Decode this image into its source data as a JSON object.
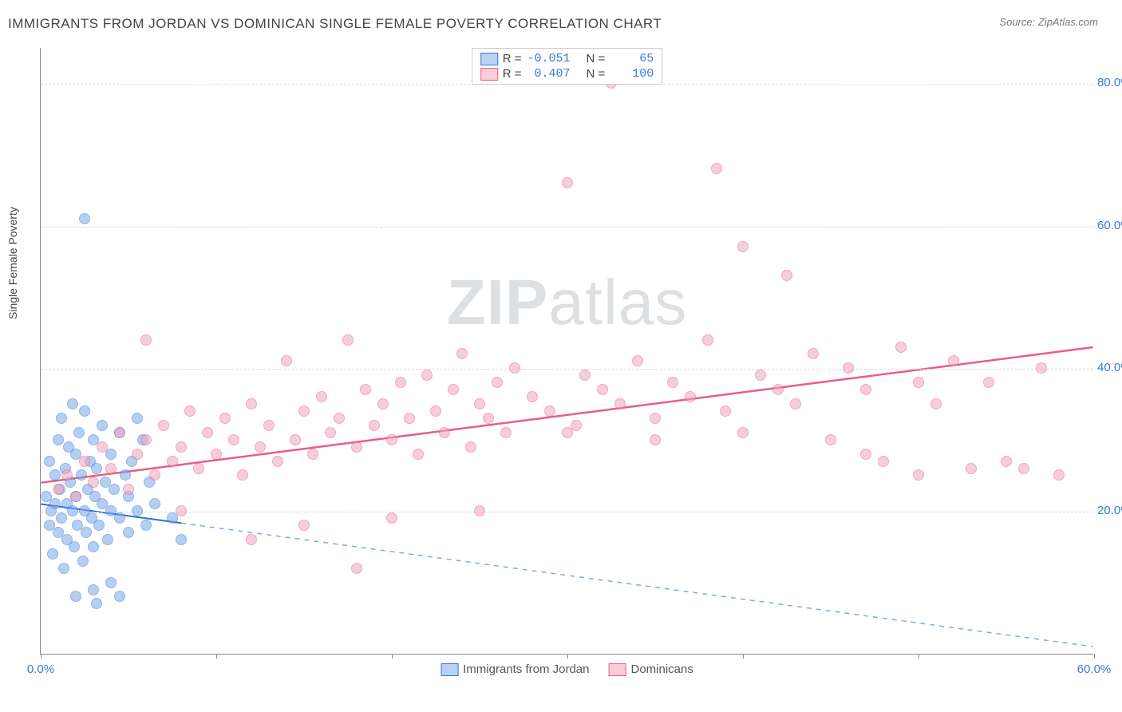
{
  "title": "IMMIGRANTS FROM JORDAN VS DOMINICAN SINGLE FEMALE POVERTY CORRELATION CHART",
  "source_label": "Source:",
  "source_name": "ZipAtlas.com",
  "ylabel": "Single Female Poverty",
  "watermark_bold": "ZIP",
  "watermark_rest": "atlas",
  "chart": {
    "type": "scatter",
    "xlim": [
      0,
      60
    ],
    "ylim": [
      0,
      85
    ],
    "background_color": "#ffffff",
    "grid_color": "#d8d8d8",
    "grid_style": "dashed",
    "axis_color": "#888888",
    "ytick_values": [
      20,
      40,
      60,
      80
    ],
    "ytick_labels": [
      "20.0%",
      "40.0%",
      "60.0%",
      "80.0%"
    ],
    "xtick_values": [
      0,
      10,
      20,
      30,
      40,
      50,
      60
    ],
    "xtick_labels_shown": {
      "0": "0.0%",
      "60": "60.0%"
    },
    "marker_radius": 7,
    "marker_opacity": 0.55,
    "label_fontsize": 14,
    "tick_fontsize": 15,
    "tick_color": "#3a78d8"
  },
  "legend_top": {
    "rows": [
      {
        "swatch_fill": "#b9d1f3",
        "swatch_border": "#3a78d8",
        "r_label": "R =",
        "r_value": "-0.051",
        "n_label": "N =",
        "n_value": "65"
      },
      {
        "swatch_fill": "#f7cdd7",
        "swatch_border": "#e85d8a",
        "r_label": "R =",
        "r_value": "0.407",
        "n_label": "N =",
        "n_value": "100"
      }
    ]
  },
  "legend_bottom": {
    "items": [
      {
        "swatch_fill": "#b9d1f3",
        "swatch_border": "#3a78d8",
        "label": "Immigrants from Jordan"
      },
      {
        "swatch_fill": "#f7cdd7",
        "swatch_border": "#e85d8a",
        "label": "Dominicans"
      }
    ]
  },
  "series": [
    {
      "name": "jordan",
      "color_fill": "#7aa8e8",
      "color_border": "#3a78d8",
      "trend": {
        "x1": 0,
        "y1": 21,
        "x2": 60,
        "y2": 1,
        "solid_until_x": 8,
        "color": "#2e6fd6",
        "width": 2
      },
      "points": [
        [
          0.3,
          22
        ],
        [
          0.5,
          18
        ],
        [
          0.5,
          27
        ],
        [
          0.6,
          20
        ],
        [
          0.7,
          14
        ],
        [
          0.8,
          25
        ],
        [
          0.8,
          21
        ],
        [
          1.0,
          30
        ],
        [
          1.0,
          17
        ],
        [
          1.1,
          23
        ],
        [
          1.2,
          33
        ],
        [
          1.2,
          19
        ],
        [
          1.3,
          12
        ],
        [
          1.4,
          26
        ],
        [
          1.5,
          21
        ],
        [
          1.5,
          16
        ],
        [
          1.6,
          29
        ],
        [
          1.7,
          24
        ],
        [
          1.8,
          35
        ],
        [
          1.8,
          20
        ],
        [
          1.9,
          15
        ],
        [
          2.0,
          28
        ],
        [
          2.0,
          22
        ],
        [
          2.1,
          18
        ],
        [
          2.2,
          31
        ],
        [
          2.3,
          25
        ],
        [
          2.4,
          13
        ],
        [
          2.5,
          20
        ],
        [
          2.5,
          34
        ],
        [
          2.6,
          17
        ],
        [
          2.7,
          23
        ],
        [
          2.8,
          27
        ],
        [
          2.9,
          19
        ],
        [
          3.0,
          30
        ],
        [
          3.0,
          15
        ],
        [
          3.1,
          22
        ],
        [
          3.2,
          26
        ],
        [
          3.3,
          18
        ],
        [
          3.5,
          32
        ],
        [
          3.5,
          21
        ],
        [
          3.7,
          24
        ],
        [
          3.8,
          16
        ],
        [
          4.0,
          28
        ],
        [
          4.0,
          20
        ],
        [
          4.2,
          23
        ],
        [
          4.5,
          19
        ],
        [
          4.5,
          31
        ],
        [
          4.8,
          25
        ],
        [
          5.0,
          17
        ],
        [
          5.0,
          22
        ],
        [
          5.2,
          27
        ],
        [
          5.5,
          20
        ],
        [
          5.8,
          30
        ],
        [
          6.0,
          18
        ],
        [
          6.2,
          24
        ],
        [
          6.5,
          21
        ],
        [
          2.0,
          8
        ],
        [
          3.0,
          9
        ],
        [
          4.0,
          10
        ],
        [
          4.5,
          8
        ],
        [
          3.2,
          7
        ],
        [
          2.5,
          61
        ],
        [
          8.0,
          16
        ],
        [
          7.5,
          19
        ],
        [
          5.5,
          33
        ]
      ]
    },
    {
      "name": "dominicans",
      "color_fill": "#f3a6bc",
      "color_border": "#e85d8a",
      "trend": {
        "x1": 0,
        "y1": 24,
        "x2": 60,
        "y2": 43,
        "solid_until_x": 60,
        "color": "#e85d8a",
        "width": 2.5
      },
      "points": [
        [
          1.0,
          23
        ],
        [
          1.5,
          25
        ],
        [
          2.0,
          22
        ],
        [
          2.5,
          27
        ],
        [
          3.0,
          24
        ],
        [
          3.5,
          29
        ],
        [
          4.0,
          26
        ],
        [
          4.5,
          31
        ],
        [
          5.0,
          23
        ],
        [
          5.5,
          28
        ],
        [
          6.0,
          30
        ],
        [
          6.5,
          25
        ],
        [
          7.0,
          32
        ],
        [
          7.5,
          27
        ],
        [
          8.0,
          29
        ],
        [
          8.5,
          34
        ],
        [
          9.0,
          26
        ],
        [
          9.5,
          31
        ],
        [
          10.0,
          28
        ],
        [
          10.5,
          33
        ],
        [
          11.0,
          30
        ],
        [
          11.5,
          25
        ],
        [
          12.0,
          35
        ],
        [
          12.5,
          29
        ],
        [
          13.0,
          32
        ],
        [
          13.5,
          27
        ],
        [
          14.0,
          41
        ],
        [
          14.5,
          30
        ],
        [
          15.0,
          34
        ],
        [
          15.5,
          28
        ],
        [
          16.0,
          36
        ],
        [
          16.5,
          31
        ],
        [
          17.0,
          33
        ],
        [
          17.5,
          44
        ],
        [
          18.0,
          29
        ],
        [
          18.5,
          37
        ],
        [
          19.0,
          32
        ],
        [
          19.5,
          35
        ],
        [
          20.0,
          30
        ],
        [
          20.5,
          38
        ],
        [
          21.0,
          33
        ],
        [
          21.5,
          28
        ],
        [
          22.0,
          39
        ],
        [
          22.5,
          34
        ],
        [
          23.0,
          31
        ],
        [
          23.5,
          37
        ],
        [
          24.0,
          42
        ],
        [
          24.5,
          29
        ],
        [
          25.0,
          35
        ],
        [
          25.5,
          33
        ],
        [
          26.0,
          38
        ],
        [
          26.5,
          31
        ],
        [
          27.0,
          40
        ],
        [
          28.0,
          36
        ],
        [
          29.0,
          34
        ],
        [
          30.0,
          66
        ],
        [
          30.5,
          32
        ],
        [
          31.0,
          39
        ],
        [
          32.0,
          37
        ],
        [
          32.5,
          80
        ],
        [
          33.0,
          35
        ],
        [
          34.0,
          41
        ],
        [
          35.0,
          33
        ],
        [
          36.0,
          38
        ],
        [
          37.0,
          36
        ],
        [
          38.0,
          44
        ],
        [
          38.5,
          68
        ],
        [
          39.0,
          34
        ],
        [
          40.0,
          57
        ],
        [
          41.0,
          39
        ],
        [
          42.0,
          37
        ],
        [
          42.5,
          53
        ],
        [
          43.0,
          35
        ],
        [
          44.0,
          42
        ],
        [
          45.0,
          30
        ],
        [
          46.0,
          40
        ],
        [
          47.0,
          37
        ],
        [
          48.0,
          27
        ],
        [
          49.0,
          43
        ],
        [
          50.0,
          38
        ],
        [
          51.0,
          35
        ],
        [
          52.0,
          41
        ],
        [
          53.0,
          26
        ],
        [
          54.0,
          38
        ],
        [
          55.0,
          27
        ],
        [
          56.0,
          26
        ],
        [
          57.0,
          40
        ],
        [
          58.0,
          25
        ],
        [
          15.0,
          18
        ],
        [
          18.0,
          12
        ],
        [
          20.0,
          19
        ],
        [
          25.0,
          20
        ],
        [
          12.0,
          16
        ],
        [
          8.0,
          20
        ],
        [
          6.0,
          44
        ],
        [
          30.0,
          31
        ],
        [
          35.0,
          30
        ],
        [
          47.0,
          28
        ],
        [
          50.0,
          25
        ],
        [
          40.0,
          31
        ]
      ]
    }
  ]
}
